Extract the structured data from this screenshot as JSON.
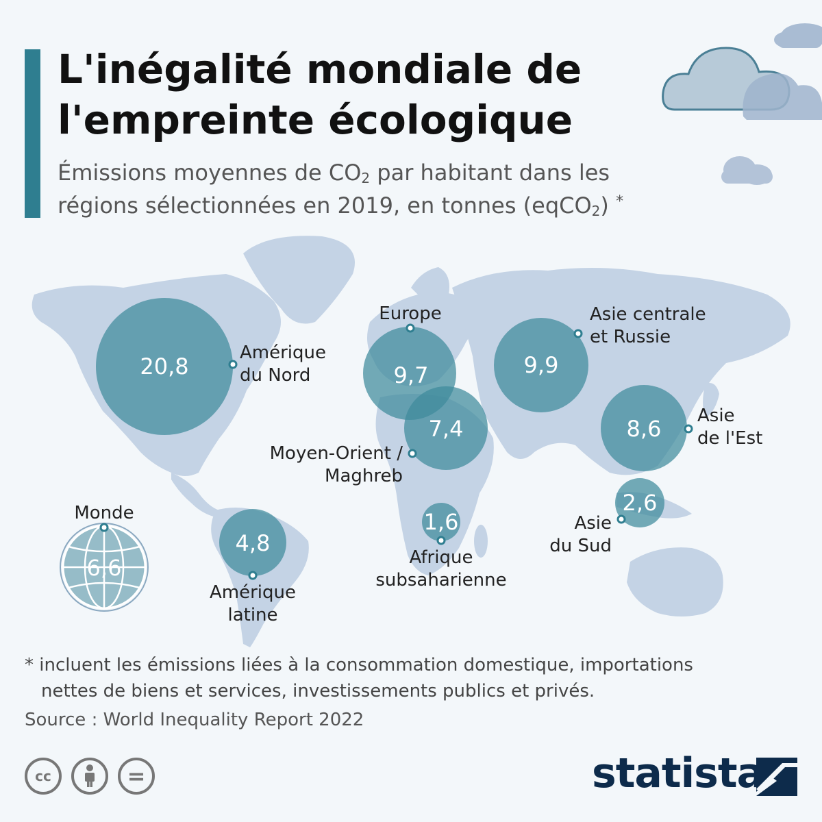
{
  "header": {
    "title_line1": "L'inégalité mondiale de",
    "title_line2": "l'empreinte écologique",
    "subtitle_line1_a": "Émissions moyennes de CO",
    "subtitle_line1_sub": "2",
    "subtitle_line1_b": " par habitant dans les",
    "subtitle_line2_a": "régions sélectionnées en 2019, en tonnes (eqCO",
    "subtitle_line2_sub": "2",
    "subtitle_line2_b": ")",
    "subtitle_star": "*"
  },
  "colors": {
    "accent": "#2f7e90",
    "bubble": "#3f8a9b",
    "land": "#c4d3e5",
    "cloud": "#a9bcd3",
    "brand": "#0d2b4b"
  },
  "regions": [
    {
      "id": "amerique-du-nord",
      "label_line1": "Amérique",
      "label_line2": "du Nord",
      "value": "20,8"
    },
    {
      "id": "europe",
      "label_line1": "Europe",
      "label_line2": "",
      "value": "9,7"
    },
    {
      "id": "asie-centrale-russie",
      "label_line1": "Asie centrale",
      "label_line2": "et Russie",
      "value": "9,9"
    },
    {
      "id": "moyen-orient-maghreb",
      "label_line1": "Moyen-Orient /",
      "label_line2": "Maghreb",
      "value": "7,4"
    },
    {
      "id": "asie-de-l-est",
      "label_line1": "Asie",
      "label_line2": "de l'Est",
      "value": "8,6"
    },
    {
      "id": "asie-du-sud",
      "label_line1": "Asie",
      "label_line2": "du Sud",
      "value": "2,6"
    },
    {
      "id": "afrique-subsaharienne",
      "label_line1": "Afrique",
      "label_line2": "subsaharienne",
      "value": "1,6"
    },
    {
      "id": "amerique-latine",
      "label_line1": "Amérique",
      "label_line2": "latine",
      "value": "4,8"
    },
    {
      "id": "monde",
      "label_line1": "Monde",
      "label_line2": "",
      "value": "6,6"
    }
  ],
  "footnote": {
    "line1": "* incluent les émissions liées à la consommation domestique, importations",
    "line2": "nettes de biens et services, investissements publics et privés."
  },
  "source": "Source : World Inequality Report 2022",
  "license_icons": [
    "cc-icon",
    "attribution-icon",
    "no-derivatives-icon"
  ],
  "license_cc_text": "cc",
  "license_nd_text": "=",
  "brand": "statista"
}
